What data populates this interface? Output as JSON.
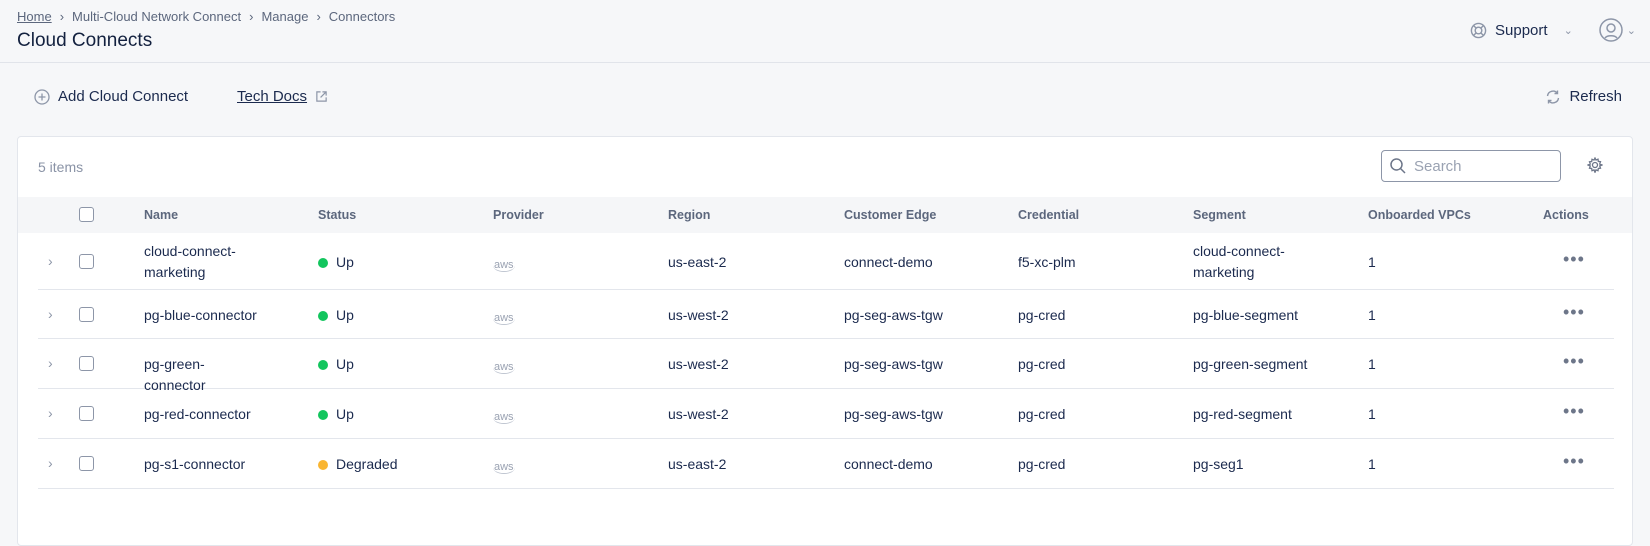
{
  "breadcrumb": [
    "Home",
    "Multi-Cloud Network Connect",
    "Manage",
    "Connectors"
  ],
  "page_title": "Cloud Connects",
  "header": {
    "support_label": "Support"
  },
  "toolbar": {
    "add_label": "Add Cloud Connect",
    "docs_label": "Tech Docs",
    "refresh_label": "Refresh"
  },
  "table": {
    "count": "5 items",
    "search_placeholder": "Search",
    "columns": [
      "Name",
      "Status",
      "Provider",
      "Region",
      "Customer Edge",
      "Credential",
      "Segment",
      "Onboarded VPCs",
      "Actions"
    ],
    "status_colors": {
      "Up": "#12c55d",
      "Degraded": "#f9b531"
    },
    "rows": [
      {
        "name": "cloud-connect-marketing",
        "status": "Up",
        "provider": "aws",
        "region": "us-east-2",
        "edge": "connect-demo",
        "credential": "f5-xc-plm",
        "segment": "cloud-connect-marketing",
        "vpcs": "1"
      },
      {
        "name": "pg-blue-connector",
        "status": "Up",
        "provider": "aws",
        "region": "us-west-2",
        "edge": "pg-seg-aws-tgw",
        "credential": "pg-cred",
        "segment": "pg-blue-segment",
        "vpcs": "1"
      },
      {
        "name": "pg-green-connector",
        "status": "Up",
        "provider": "aws",
        "region": "us-west-2",
        "edge": "pg-seg-aws-tgw",
        "credential": "pg-cred",
        "segment": "pg-green-segment",
        "vpcs": "1"
      },
      {
        "name": "pg-red-connector",
        "status": "Up",
        "provider": "aws",
        "region": "us-west-2",
        "edge": "pg-seg-aws-tgw",
        "credential": "pg-cred",
        "segment": "pg-red-segment",
        "vpcs": "1"
      },
      {
        "name": "pg-s1-connector",
        "status": "Degraded",
        "provider": "aws",
        "region": "us-east-2",
        "edge": "connect-demo",
        "credential": "pg-cred",
        "segment": "pg-seg1",
        "vpcs": "1"
      }
    ]
  }
}
